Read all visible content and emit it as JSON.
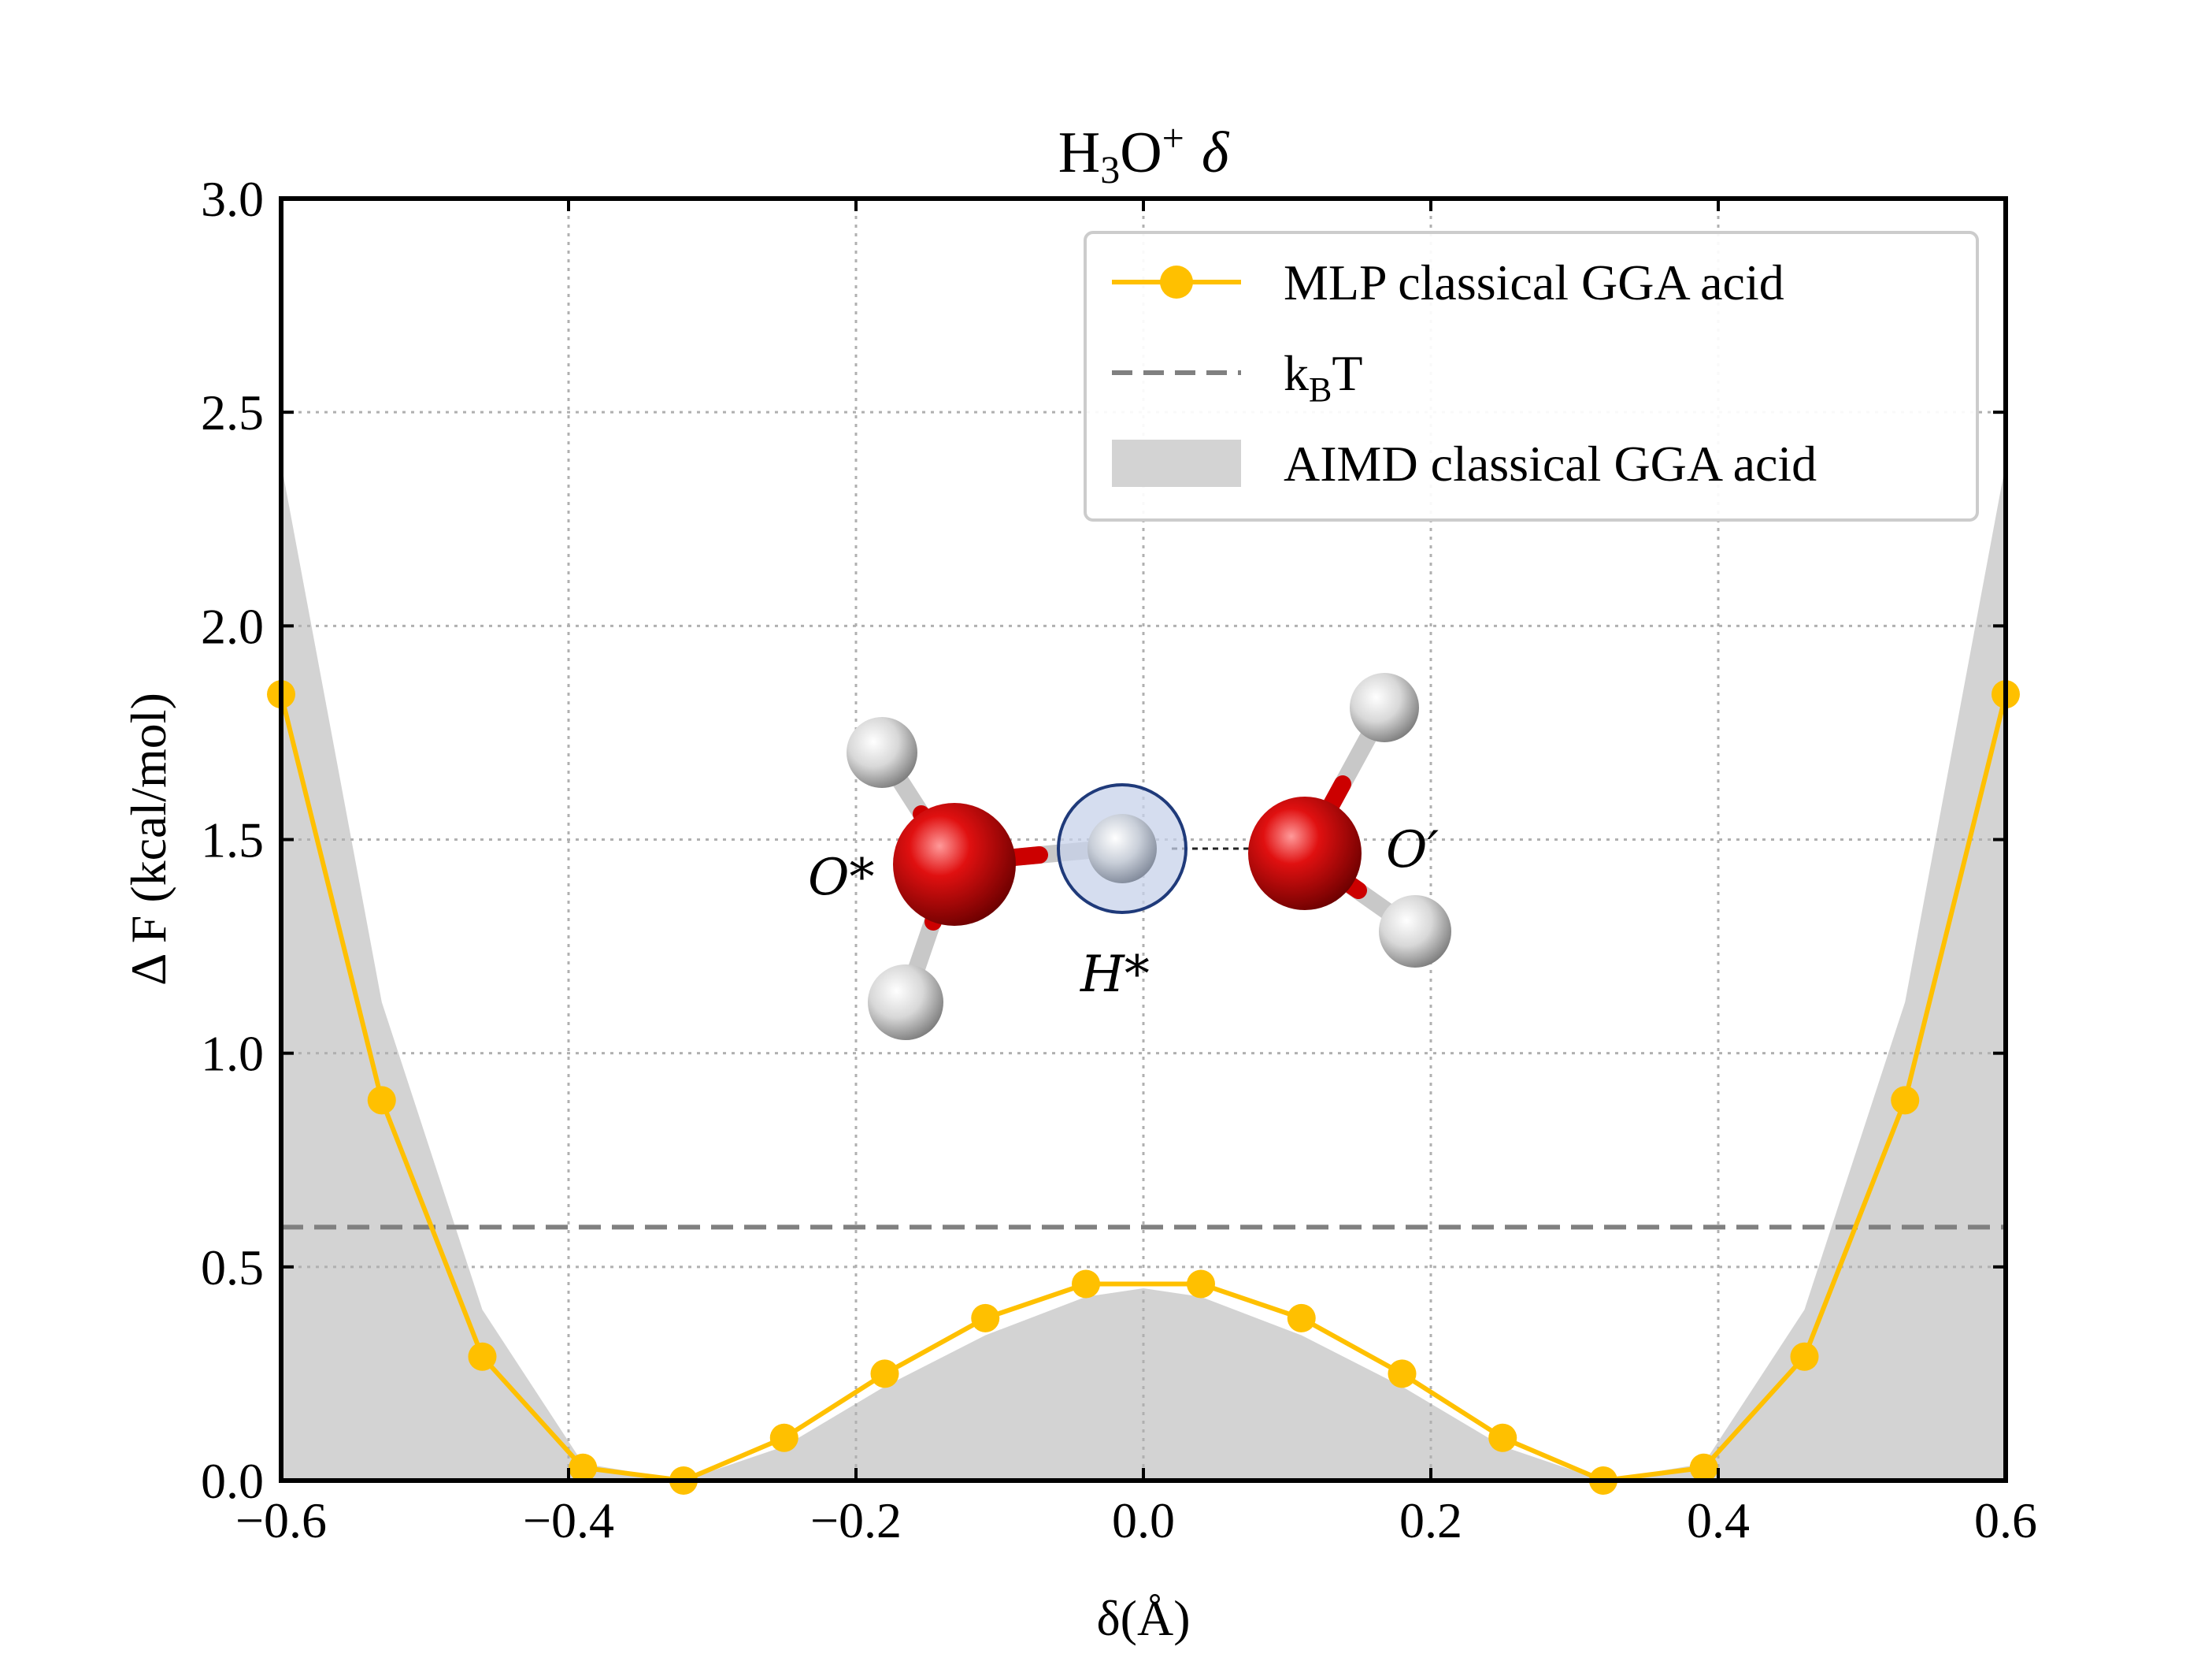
{
  "chart_data": {
    "type": "line",
    "title": "H₃O⁺ δ",
    "title_parts": {
      "main": "H",
      "sub": "3",
      "mid": "O",
      "sup": "+",
      "symbol": "δ"
    },
    "xlabel": "δ(Å)",
    "ylabel": "Δ F (kcal/mol)",
    "xlim": [
      -0.6,
      0.6
    ],
    "ylim": [
      0.0,
      3.0
    ],
    "xticks": [
      -0.6,
      -0.4,
      -0.2,
      0.0,
      0.2,
      0.4,
      0.6
    ],
    "xtick_labels": [
      "−0.6",
      "−0.4",
      "−0.2",
      "0.0",
      "0.2",
      "0.4",
      "0.6"
    ],
    "yticks": [
      0.0,
      0.5,
      1.0,
      1.5,
      2.0,
      2.5,
      3.0
    ],
    "ytick_labels": [
      "0.0",
      "0.5",
      "1.0",
      "1.5",
      "2.0",
      "2.5",
      "3.0"
    ],
    "grid": true,
    "legend_position": "top-right",
    "series": [
      {
        "name": "MLP classical GGA acid",
        "kind": "line-marker",
        "color": "#FFC000",
        "x": [
          -0.6,
          -0.53,
          -0.46,
          -0.39,
          -0.32,
          -0.25,
          -0.18,
          -0.11,
          -0.04,
          0.04,
          0.11,
          0.18,
          0.25,
          0.32,
          0.39,
          0.46,
          0.53,
          0.6
        ],
        "y": [
          1.84,
          0.89,
          0.29,
          0.03,
          0.0,
          0.1,
          0.25,
          0.38,
          0.46,
          0.46,
          0.38,
          0.25,
          0.1,
          0.0,
          0.03,
          0.29,
          0.89,
          1.84
        ]
      },
      {
        "name": "k_BT",
        "legend_main": "k",
        "legend_sub": "B",
        "legend_tail": "T",
        "kind": "hline-dashed",
        "color": "#808080",
        "y": 0.593
      },
      {
        "name": "AIMD classical GGA acid",
        "kind": "area",
        "color": "#D3D3D3",
        "x": [
          -0.6,
          -0.53,
          -0.46,
          -0.39,
          -0.32,
          -0.25,
          -0.18,
          -0.11,
          -0.04,
          0.0,
          0.04,
          0.11,
          0.18,
          0.25,
          0.32,
          0.39,
          0.46,
          0.53,
          0.6
        ],
        "y": [
          2.38,
          1.12,
          0.4,
          0.04,
          0.0,
          0.08,
          0.22,
          0.34,
          0.43,
          0.45,
          0.43,
          0.34,
          0.22,
          0.08,
          0.0,
          0.04,
          0.4,
          1.12,
          2.38
        ]
      }
    ]
  },
  "inset": {
    "labels": {
      "o_star": "O*",
      "o_prime": "O′",
      "h_star": "H*"
    },
    "colors": {
      "oxygen": "#D00000",
      "hydrogen": "#E8E8E8",
      "bond_h": "#C8C8C8",
      "highlight": "#8BA4D6"
    }
  }
}
